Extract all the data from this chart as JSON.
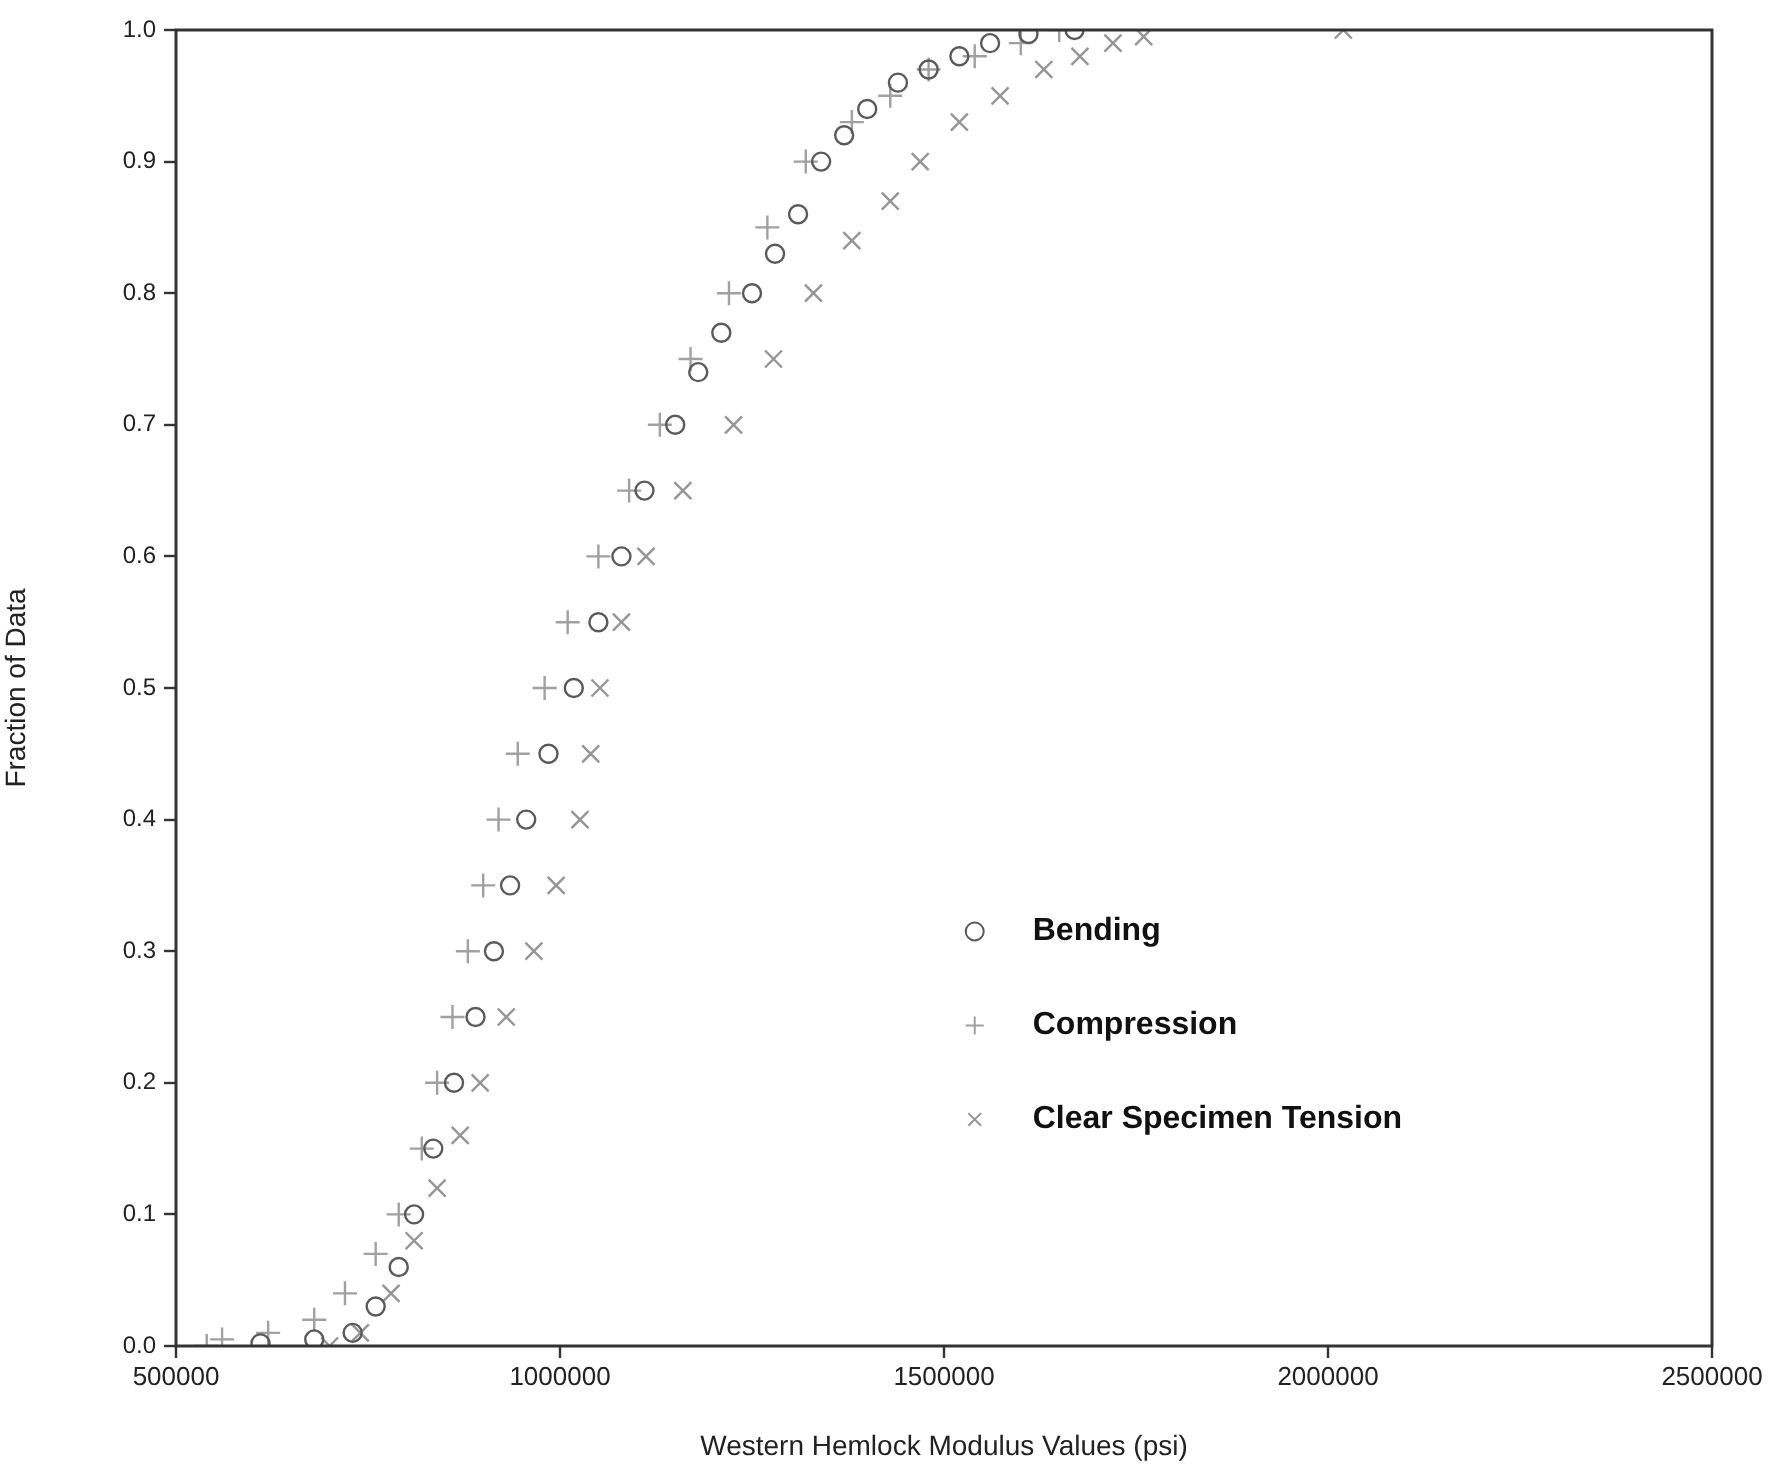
{
  "chart_data": {
    "type": "scatter",
    "xlabel": "Western Hemlock Modulus Values (psi)",
    "ylabel": "Fraction of Data",
    "xlim": [
      500000,
      2500000
    ],
    "xticks": [
      500000,
      1000000,
      1500000,
      2000000,
      2500000
    ],
    "ylim": [
      0,
      1
    ],
    "yticks": [
      {
        "value": 0,
        "label": "0.0"
      },
      0.1,
      0.2,
      0.3,
      0.4,
      0.5,
      0.6,
      0.7,
      0.8,
      0.9,
      {
        "value": 1,
        "label": "1.0"
      }
    ],
    "grid": false,
    "legend": "bottom right",
    "series": [
      {
        "name": "Bending",
        "color": "#5a5a5a",
        "marker": "circle",
        "x": [
          610000,
          680000,
          730000,
          760000,
          790000,
          810000,
          835000,
          862000,
          890000,
          914000,
          935000,
          956000,
          985000,
          1018000,
          1050000,
          1080000,
          1110000,
          1150000,
          1180000,
          1210000,
          1250000,
          1280000,
          1310000,
          1340000,
          1370000,
          1400000,
          1440000,
          1480000,
          1520000,
          1560000,
          1610000,
          1670000
        ],
        "values": [
          0.002,
          0.005,
          0.01,
          0.03,
          0.06,
          0.1,
          0.15,
          0.2,
          0.25,
          0.3,
          0.35,
          0.4,
          0.45,
          0.5,
          0.55,
          0.6,
          0.65,
          0.7,
          0.74,
          0.77,
          0.8,
          0.83,
          0.86,
          0.9,
          0.92,
          0.94,
          0.96,
          0.97,
          0.98,
          0.99,
          0.997,
          1.0
        ]
      },
      {
        "name": "Compression",
        "color": "#a0a0a0",
        "marker": "cross",
        "x": [
          540000,
          560000,
          620000,
          680000,
          720000,
          760000,
          790000,
          820000,
          840000,
          860000,
          880000,
          900000,
          920000,
          945000,
          980000,
          1010000,
          1050000,
          1090000,
          1130000,
          1170000,
          1220000,
          1270000,
          1320000,
          1380000,
          1430000,
          1480000,
          1540000,
          1600000,
          1650000
        ],
        "values": [
          0.0,
          0.005,
          0.01,
          0.02,
          0.04,
          0.07,
          0.1,
          0.15,
          0.2,
          0.25,
          0.3,
          0.35,
          0.4,
          0.45,
          0.5,
          0.55,
          0.6,
          0.65,
          0.7,
          0.75,
          0.8,
          0.85,
          0.9,
          0.93,
          0.95,
          0.97,
          0.98,
          0.99,
          1.0
        ]
      },
      {
        "name": "Clear Specimen Tension",
        "color": "#959595",
        "marker": "x",
        "x": [
          700000,
          740000,
          780000,
          810000,
          840000,
          870000,
          896000,
          930000,
          966000,
          995000,
          1026000,
          1040000,
          1052000,
          1080000,
          1112000,
          1160000,
          1226000,
          1278000,
          1330000,
          1380000,
          1430000,
          1469000,
          1520000,
          1573000,
          1630000,
          1677000,
          1720000,
          1760000,
          2020000
        ],
        "values": [
          0.0,
          0.01,
          0.04,
          0.08,
          0.12,
          0.16,
          0.2,
          0.25,
          0.3,
          0.35,
          0.4,
          0.45,
          0.5,
          0.55,
          0.6,
          0.65,
          0.7,
          0.75,
          0.8,
          0.84,
          0.87,
          0.9,
          0.93,
          0.95,
          0.97,
          0.98,
          0.99,
          0.995,
          1.0
        ]
      }
    ]
  }
}
